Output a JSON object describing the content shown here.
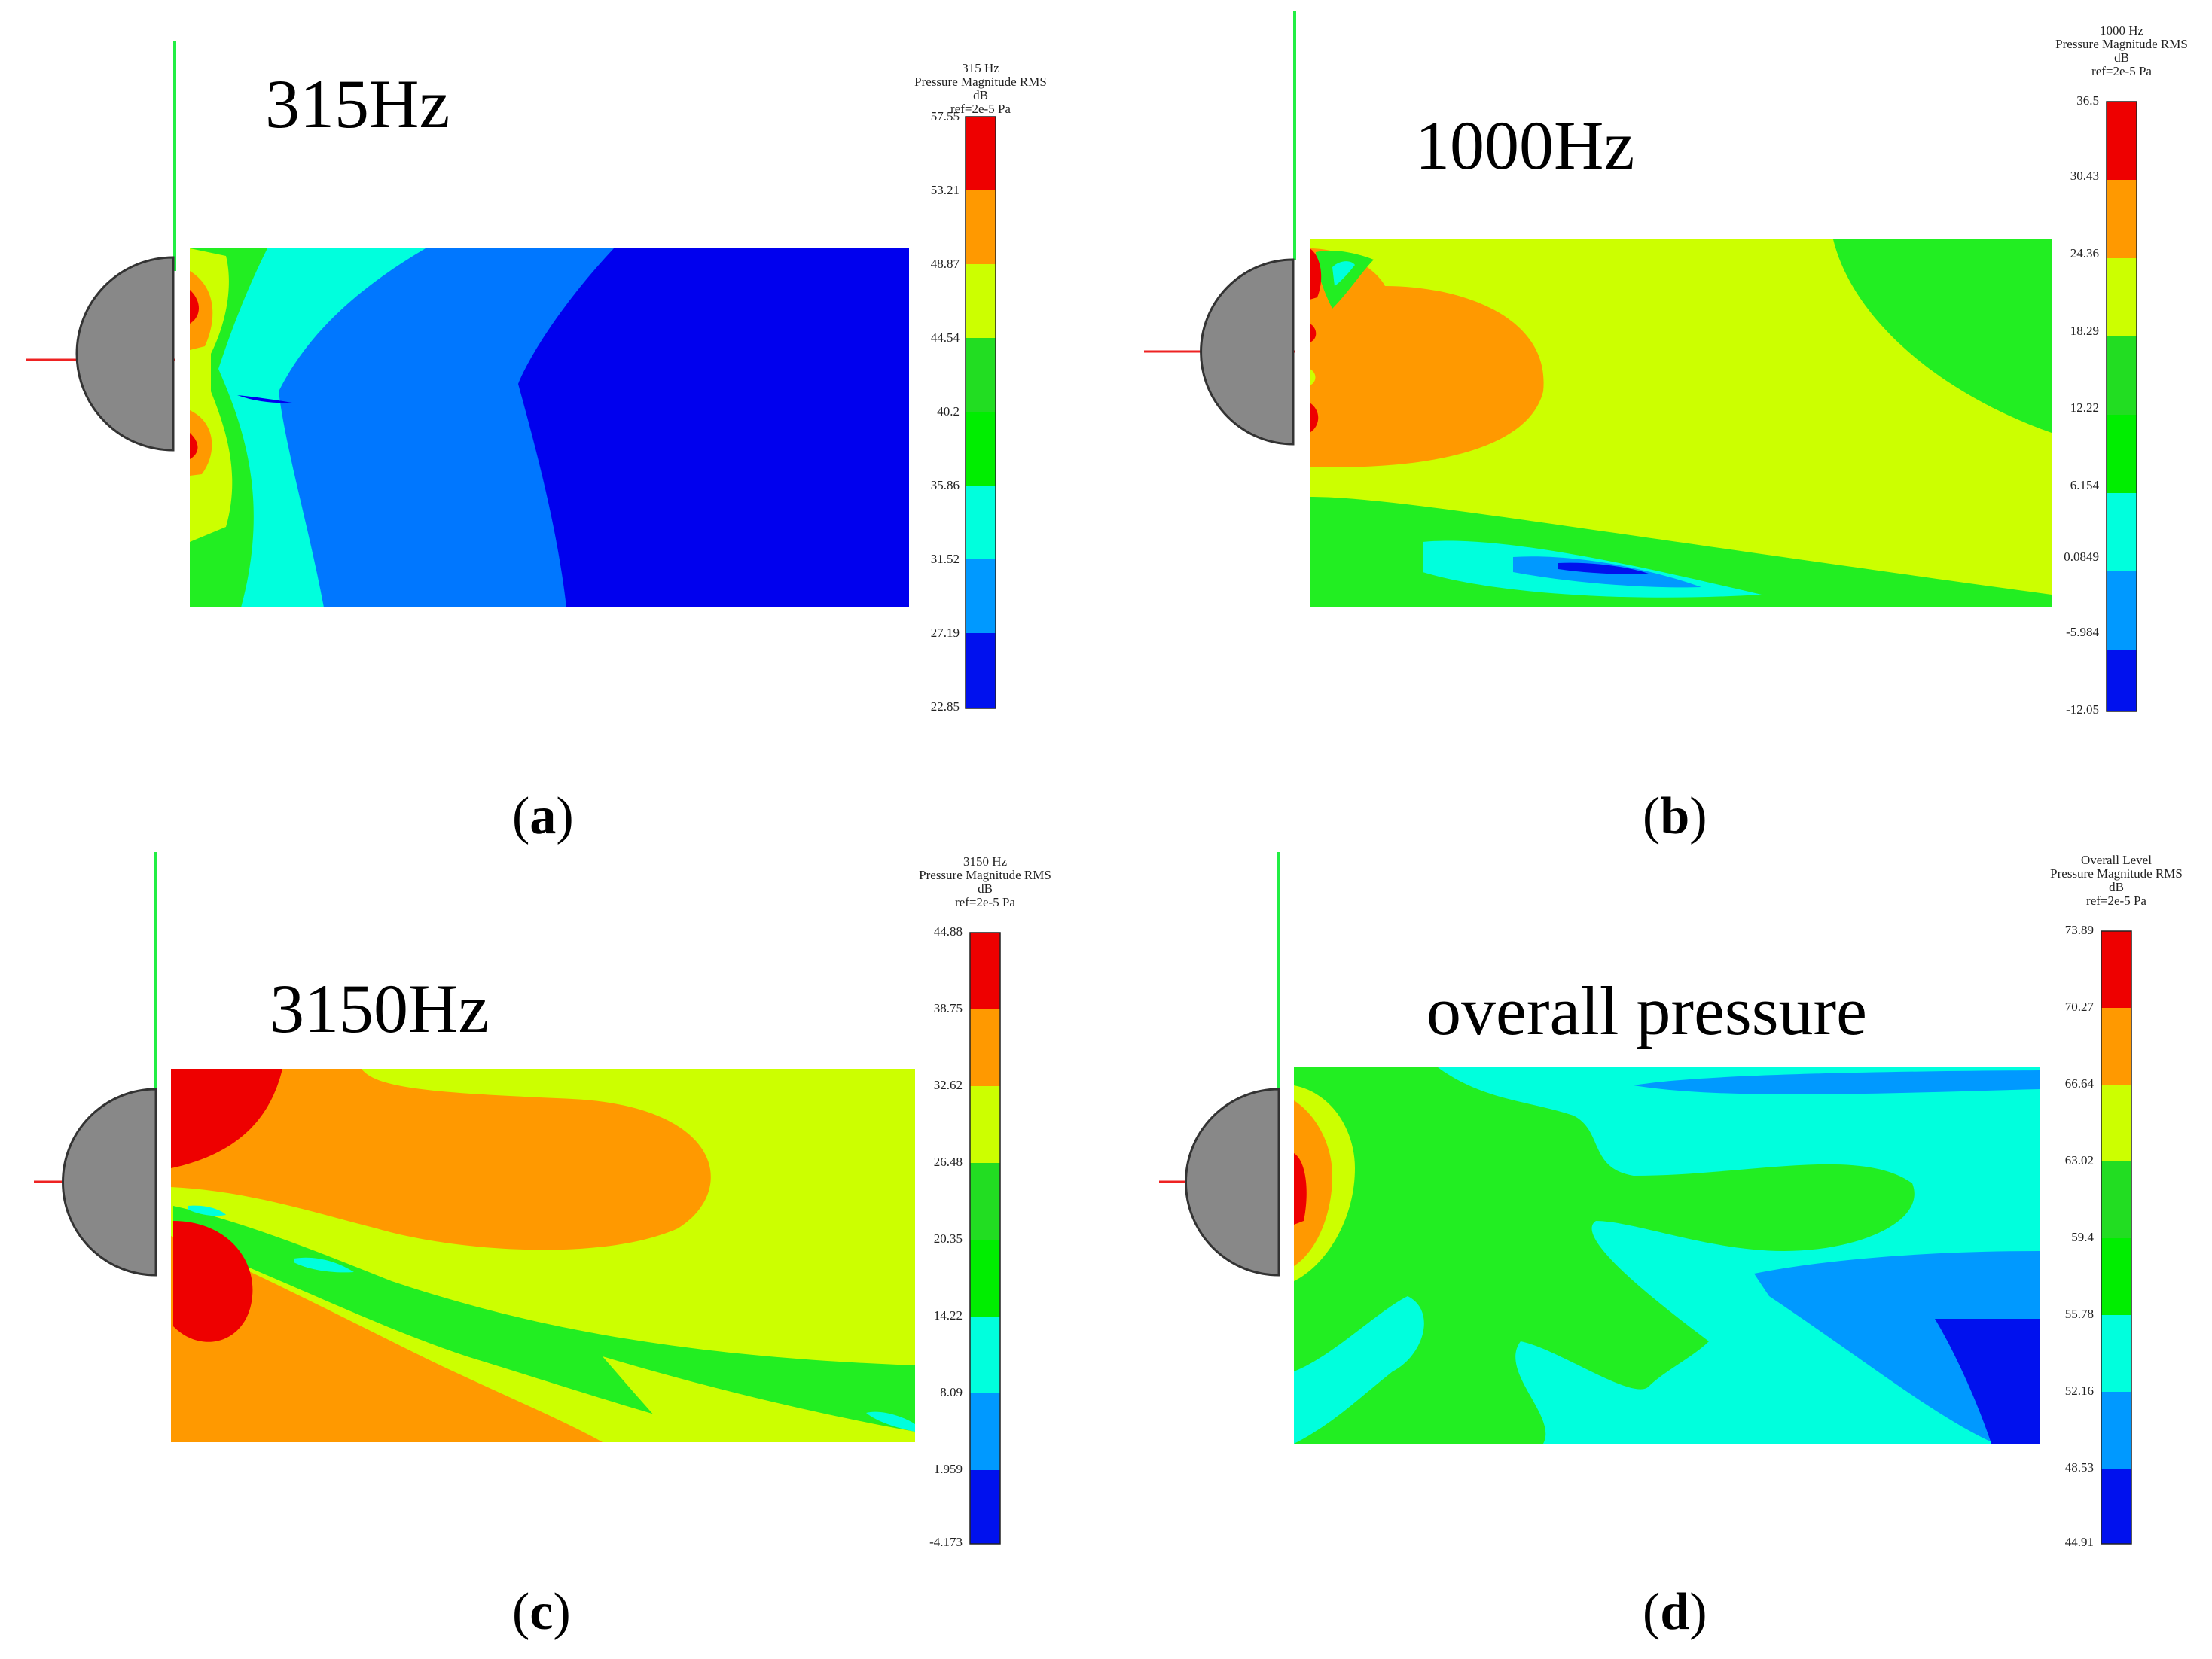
{
  "panels": [
    {
      "id": "a",
      "freq_label": "315Hz",
      "caption": "a",
      "legend": {
        "title_lines": [
          "315 Hz",
          "Pressure Magnitude RMS",
          "dB",
          "ref=2e-5 Pa"
        ],
        "ticks": [
          "57.55",
          "53.21",
          "48.87",
          "44.54",
          "40.2",
          "35.86",
          "31.52",
          "27.19",
          "22.85"
        ]
      }
    },
    {
      "id": "b",
      "freq_label": "1000Hz",
      "caption": "b",
      "legend": {
        "title_lines": [
          "1000 Hz",
          "Pressure Magnitude RMS",
          "dB",
          "ref=2e-5 Pa"
        ],
        "ticks": [
          "36.5",
          "30.43",
          "24.36",
          "18.29",
          "12.22",
          "6.154",
          "0.0849",
          "-5.984",
          "-12.05"
        ]
      }
    },
    {
      "id": "c",
      "freq_label": "3150Hz",
      "caption": "c",
      "legend": {
        "title_lines": [
          "3150 Hz",
          "Pressure Magnitude RMS",
          "dB",
          "ref=2e-5 Pa"
        ],
        "ticks": [
          "44.88",
          "38.75",
          "32.62",
          "26.48",
          "20.35",
          "14.22",
          "8.09",
          "1.959",
          "-4.173"
        ]
      }
    },
    {
      "id": "d",
      "freq_label": "overall pressure",
      "caption": "d",
      "legend": {
        "title_lines": [
          "Overall Level",
          "Pressure Magnitude RMS",
          "dB",
          "ref=2e-5 Pa"
        ],
        "ticks": [
          "73.89",
          "70.27",
          "66.64",
          "63.02",
          "59.4",
          "55.78",
          "52.16",
          "48.53",
          "44.91"
        ]
      }
    }
  ],
  "colormap": {
    "bands_top_to_bottom": [
      "#ee0000",
      "#ff9900",
      "#ccff00",
      "#22dd22",
      "#00ee00",
      "#00ffdd",
      "#0099ff",
      "#0011ee"
    ]
  }
}
